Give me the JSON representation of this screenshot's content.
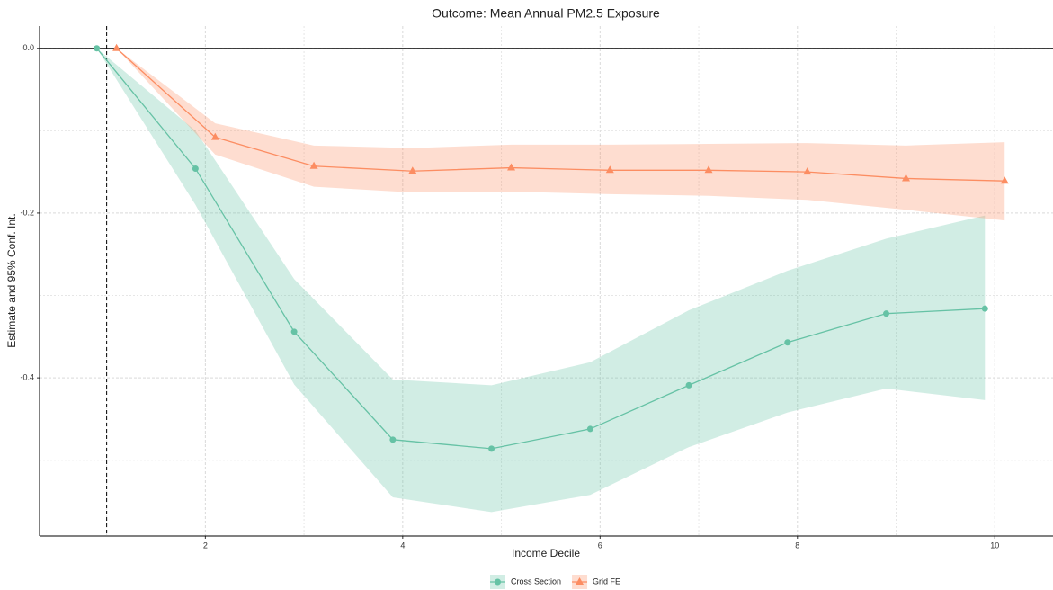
{
  "chart_data": {
    "type": "line",
    "title": "Outcome: Mean Annual PM2.5 Exposure",
    "x_label": "Income Decile",
    "y_label": "Estimate and 95% Conf. Int.",
    "xlim": [
      0.32,
      10.59
    ],
    "ylim": [
      -0.592,
      0.027
    ],
    "xticks": [
      2,
      4,
      6,
      8,
      10
    ],
    "yticks": [
      {
        "value": 0,
        "label": "0.0"
      },
      -0.2,
      -0.4
    ],
    "x_minor_ticks": [
      1,
      3,
      5,
      7,
      9
    ],
    "y_minor_ticks": [
      -0.1,
      -0.3,
      -0.5
    ],
    "hline": 0,
    "vline": 1,
    "grid": true,
    "legend": "bottom",
    "series": [
      {
        "name": "Cross Section",
        "color": "#66c2a5",
        "marker": "circle",
        "x": [
          0.9,
          1.9,
          2.9,
          3.9,
          4.9,
          5.9,
          6.9,
          7.9,
          8.9,
          9.9
        ],
        "values": [
          0,
          -0.146,
          -0.344,
          -0.475,
          -0.486,
          -0.462,
          -0.409,
          -0.357,
          -0.322,
          -0.316
        ],
        "lower": [
          0,
          -0.19,
          -0.408,
          -0.545,
          -0.563,
          -0.542,
          -0.484,
          -0.442,
          -0.413,
          -0.427
        ],
        "upper": [
          0,
          -0.1,
          -0.28,
          -0.402,
          -0.409,
          -0.381,
          -0.318,
          -0.27,
          -0.231,
          -0.203
        ]
      },
      {
        "name": "Grid FE",
        "color": "#fc8d62",
        "marker": "triangle",
        "x": [
          1.1,
          2.1,
          3.1,
          4.1,
          5.1,
          6.1,
          7.1,
          8.1,
          9.1,
          10.1
        ],
        "values": [
          0,
          -0.108,
          -0.143,
          -0.149,
          -0.145,
          -0.148,
          -0.148,
          -0.15,
          -0.158,
          -0.161
        ],
        "lower": [
          0,
          -0.129,
          -0.168,
          -0.175,
          -0.174,
          -0.177,
          -0.179,
          -0.184,
          -0.196,
          -0.209
        ],
        "upper": [
          0,
          -0.091,
          -0.118,
          -0.121,
          -0.117,
          -0.117,
          -0.116,
          -0.115,
          -0.118,
          -0.114
        ]
      }
    ]
  }
}
